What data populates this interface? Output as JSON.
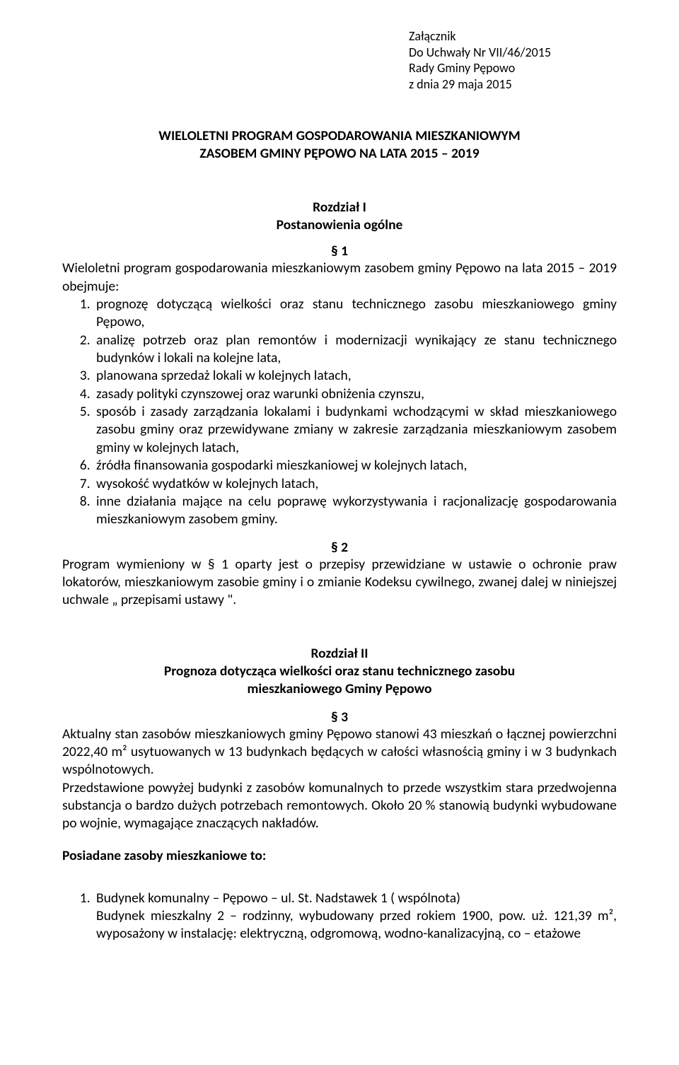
{
  "header": {
    "l1": "Załącznik",
    "l2": "Do Uchwały Nr VII/46/2015",
    "l3": "Rady Gminy Pępowo",
    "l4": "z dnia 29 maja 2015"
  },
  "title": {
    "l1": "WIELOLETNI PROGRAM GOSPODAROWANIA MIESZKANIOWYM",
    "l2": "ZASOBEM GMINY PĘPOWO NA LATA 2015 – 2019"
  },
  "chapter1": {
    "name": "Rozdział I",
    "sub": "Postanowienia ogólne"
  },
  "s1": {
    "num": "§ 1",
    "intro": "Wieloletni program gospodarowania mieszkaniowym zasobem gminy Pępowo na lata 2015 – 2019 obejmuje:",
    "items": [
      "prognozę dotyczącą wielkości oraz stanu technicznego zasobu mieszkaniowego gminy Pępowo,",
      "analizę potrzeb oraz plan remontów i modernizacji wynikający ze stanu technicznego budynków i lokali na kolejne lata,",
      "planowana sprzedaż lokali w kolejnych latach,",
      "zasady polityki czynszowej oraz warunki obniżenia czynszu,",
      "sposób i zasady zarządzania lokalami i budynkami wchodzącymi w skład mieszkaniowego zasobu gminy oraz przewidywane zmiany w zakresie zarządzania mieszkaniowym zasobem gminy w kolejnych latach,",
      "źródła finansowania gospodarki mieszkaniowej w kolejnych latach,",
      "wysokość wydatków w kolejnych latach,",
      "inne działania mające na celu poprawę wykorzystywania i racjonalizację gospodarowania mieszkaniowym zasobem gminy."
    ]
  },
  "s2": {
    "num": "§ 2",
    "body": "Program wymieniony w § 1 oparty jest o przepisy przewidziane w ustawie o ochronie praw lokatorów, mieszkaniowym zasobie gminy i o zmianie Kodeksu cywilnego, zwanej dalej w niniejszej uchwale „ przepisami ustawy \"."
  },
  "chapter2": {
    "name": "Rozdział II",
    "sub1": "Prognoza dotycząca wielkości oraz stanu technicznego zasobu",
    "sub2": "mieszkaniowego Gminy Pępowo"
  },
  "s3": {
    "num": "§ 3",
    "p1": "Aktualny stan zasobów mieszkaniowych gminy Pępowo stanowi 43 mieszkań o łącznej powierzchni 2022,40 m² usytuowanych w 13 budynkach będących w całości własnością gminy i w 3 budynkach wspólnotowych.",
    "p2": "Przedstawione powyżej budynki z zasobów komunalnych to przede wszystkim stara przedwojenna substancja o bardzo dużych potrzebach remontowych. Około 20 % stanowią budynki wybudowane po wojnie, wymagające znaczących nakładów."
  },
  "assets": {
    "heading": "Posiadane zasoby mieszkaniowe to:"
  },
  "b1": {
    "l1": "Budynek komunalny – Pępowo – ul. St. Nadstawek 1 ( wspólnota)",
    "l2": "Budynek mieszkalny 2 – rodzinny, wybudowany przed rokiem 1900, pow. uż. 121,39 m², wyposażony w instalację: elektryczną, odgromową, wodno-kanalizacyjną, co – etażowe"
  }
}
